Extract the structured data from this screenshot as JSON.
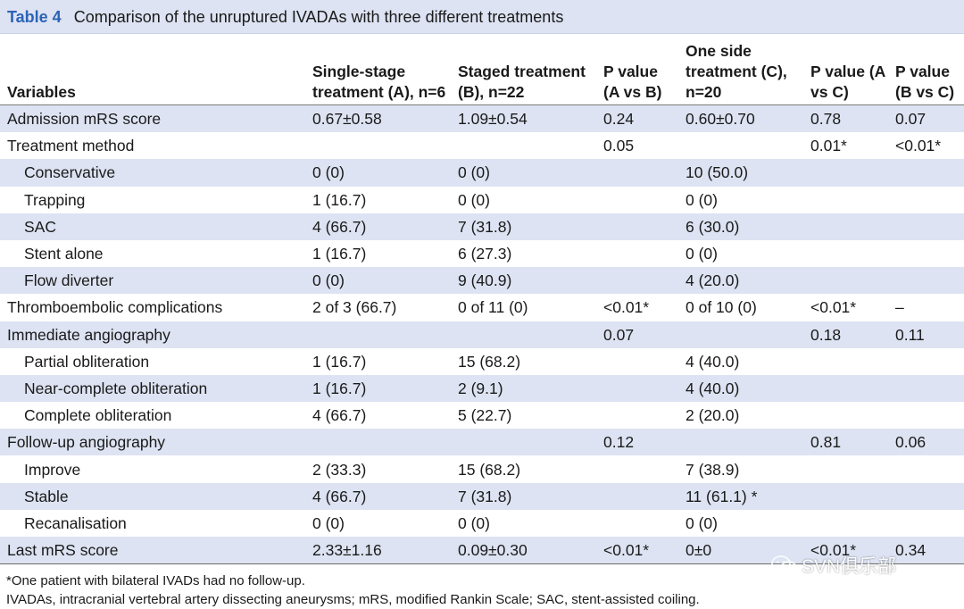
{
  "caption": {
    "label": "Table 4",
    "title": "Comparison of the unruptured IVADAs with three different treatments"
  },
  "headers": [
    "Variables",
    "Single-stage treatment (A), n=6",
    "Staged treatment (B), n=22",
    "P value (A vs B)",
    "One side treatment (C), n=20",
    "P value (A vs C)",
    "P value (B vs C)"
  ],
  "rows": [
    {
      "cells": [
        "Admission mRS score",
        "0.67±0.58",
        "1.09±0.54",
        "0.24",
        "0.60±0.70",
        "0.78",
        "0.07"
      ]
    },
    {
      "cells": [
        "Treatment method",
        "",
        "",
        "0.05",
        "",
        "0.01*",
        "<0.01*"
      ]
    },
    {
      "cells": [
        "Conservative",
        "0 (0)",
        "0 (0)",
        "",
        "10 (50.0)",
        "",
        ""
      ]
    },
    {
      "cells": [
        "Trapping",
        "1 (16.7)",
        "0 (0)",
        "",
        "0 (0)",
        "",
        ""
      ]
    },
    {
      "cells": [
        "SAC",
        "4 (66.7)",
        "7 (31.8)",
        "",
        "6 (30.0)",
        "",
        ""
      ]
    },
    {
      "cells": [
        "Stent alone",
        "1 (16.7)",
        "6 (27.3)",
        "",
        "0 (0)",
        "",
        ""
      ]
    },
    {
      "cells": [
        "Flow diverter",
        "0 (0)",
        "9 (40.9)",
        "",
        "4 (20.0)",
        "",
        ""
      ]
    },
    {
      "cells": [
        "Thromboembolic complications",
        "2 of 3 (66.7)",
        "0 of 11 (0)",
        "<0.01*",
        "0 of 10 (0)",
        "<0.01*",
        "–"
      ]
    },
    {
      "cells": [
        "Immediate angiography",
        "",
        "",
        "0.07",
        "",
        "0.18",
        "0.11"
      ]
    },
    {
      "cells": [
        "Partial obliteration",
        "1 (16.7)",
        "15 (68.2)",
        "",
        "4 (40.0)",
        "",
        ""
      ]
    },
    {
      "cells": [
        "Near-complete obliteration",
        "1 (16.7)",
        "2 (9.1)",
        "",
        "4 (40.0)",
        "",
        ""
      ]
    },
    {
      "cells": [
        "Complete obliteration",
        "4 (66.7)",
        "5 (22.7)",
        "",
        "2 (20.0)",
        "",
        ""
      ]
    },
    {
      "cells": [
        "Follow-up angiography",
        "",
        "",
        "0.12",
        "",
        "0.81",
        "0.06"
      ]
    },
    {
      "cells": [
        "Improve",
        "2 (33.3)",
        "15 (68.2)",
        "",
        "7 (38.9)",
        "",
        ""
      ]
    },
    {
      "cells": [
        "Stable",
        "4 (66.7)",
        "7 (31.8)",
        "",
        "11 (61.1) *",
        "",
        ""
      ]
    },
    {
      "cells": [
        "Recanalisation",
        "0 (0)",
        "0 (0)",
        "",
        "0 (0)",
        "",
        ""
      ]
    },
    {
      "cells": [
        "Last mRS score",
        "2.33±1.16",
        "0.09±0.30",
        "<0.01*",
        "0±0",
        "<0.01*",
        "0.34"
      ]
    }
  ],
  "footnotes": [
    "*One patient with bilateral IVADs had no follow-up.",
    "IVADAs, intracranial vertebral artery dissecting aneurysms; mRS, modified Rankin Scale; SAC, stent-assisted coiling."
  ],
  "watermark": {
    "text": "SVN俱乐部",
    "icon": "wechat-icon"
  },
  "colors": {
    "shade": "#dde3f2",
    "label_blue": "#2c63b6"
  }
}
